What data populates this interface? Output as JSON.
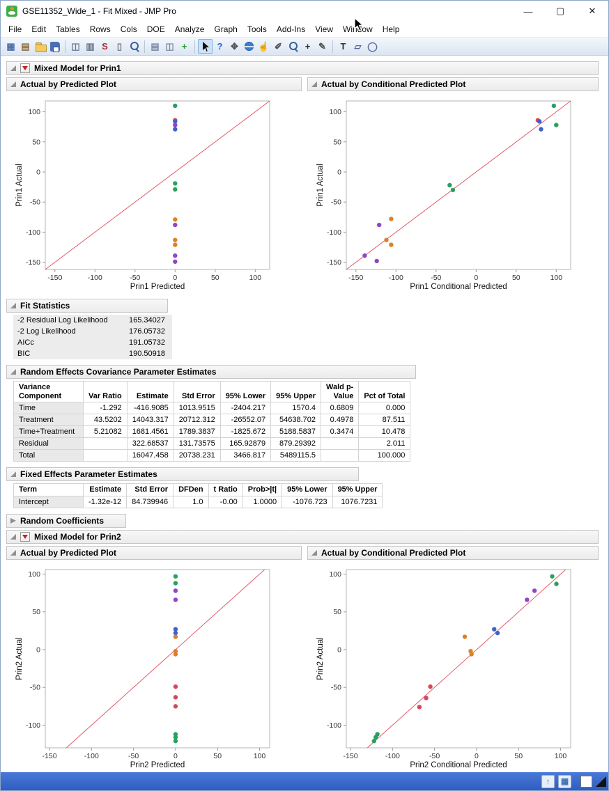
{
  "window": {
    "title": "GSE11352_Wide_1 - Fit Mixed - JMP Pro",
    "controls": {
      "minimize": "—",
      "maximize": "▢",
      "close": "✕"
    }
  },
  "menu": {
    "items": [
      "File",
      "Edit",
      "Tables",
      "Rows",
      "Cols",
      "DOE",
      "Analyze",
      "Graph",
      "Tools",
      "Add-Ins",
      "View",
      "Window",
      "Help"
    ]
  },
  "toolbar": {
    "groups": [
      [
        {
          "name": "new-data-table-icon",
          "glyph": "▦",
          "color": "#4d6fa8"
        },
        {
          "name": "new-journal-icon",
          "glyph": "▤",
          "color": "#8d6c3f"
        },
        {
          "name": "open-icon",
          "css": "i-folder"
        },
        {
          "name": "save-icon",
          "css": "i-floppy"
        }
      ],
      [
        {
          "name": "copy-icon",
          "glyph": "◫",
          "color": "#66778f"
        },
        {
          "name": "paste-icon",
          "glyph": "▥",
          "color": "#66778f"
        },
        {
          "name": "run-script-icon",
          "glyph": "S",
          "color": "#a83232"
        },
        {
          "name": "lock-icon",
          "glyph": "▯",
          "color": "#777777"
        },
        {
          "name": "search-icon",
          "css": "i-magnifier"
        }
      ],
      [
        {
          "name": "journal-icon",
          "glyph": "▤",
          "color": "#7a8aa5"
        },
        {
          "name": "layout-icon",
          "glyph": "◫",
          "color": "#7a8aa5"
        },
        {
          "name": "new-graph-icon",
          "glyph": "+",
          "color": "#2c9c3e"
        }
      ],
      [
        {
          "name": "arrow-tool-icon",
          "css": "i-arrow",
          "selected": true
        },
        {
          "name": "help-tool-icon",
          "glyph": "?",
          "color": "#2b5fd9"
        },
        {
          "name": "grabber-tool-icon",
          "glyph": "✥",
          "color": "#555555"
        },
        {
          "name": "globe-icon",
          "css": "i-globe"
        },
        {
          "name": "hand-tool-icon",
          "glyph": "☝",
          "color": "#555555"
        },
        {
          "name": "brush-tool-icon",
          "glyph": "✐",
          "color": "#555555"
        },
        {
          "name": "magnifier-tool-icon",
          "css": "i-magnifier"
        },
        {
          "name": "crosshair-tool-icon",
          "glyph": "+",
          "color": "#333333"
        },
        {
          "name": "pencil-tool-icon",
          "glyph": "✎",
          "color": "#555555"
        }
      ],
      [
        {
          "name": "annotate-text-icon",
          "glyph": "T",
          "color": "#333333"
        },
        {
          "name": "polygon-tool-icon",
          "glyph": "▱",
          "color": "#556699"
        },
        {
          "name": "oval-tool-icon",
          "glyph": "◯",
          "color": "#556699"
        }
      ]
    ]
  },
  "report": {
    "prin1_title": "Mixed Model for Prin1",
    "prin2_title": "Mixed Model for Prin2",
    "random_coefficients_title": "Random Coefficients"
  },
  "tables": {
    "fit_stats": {
      "title": "Fit Statistics",
      "rows": [
        [
          "-2 Residual Log Likelihood",
          "165.34027"
        ],
        [
          "-2 Log Likelihood",
          "176.05732"
        ],
        [
          "AICc",
          "191.05732"
        ],
        [
          "BIC",
          "190.50918"
        ]
      ]
    },
    "re_cov": {
      "title": "Random Effects Covariance Parameter Estimates",
      "headers": [
        "Variance\nComponent",
        "Var Ratio",
        "Estimate",
        "Std Error",
        "95% Lower",
        "95% Upper",
        "Wald p-\nValue",
        "Pct of Total"
      ],
      "rows": [
        [
          "Time",
          "-1.292",
          "-416.9085",
          "1013.9515",
          "-2404.217",
          "1570.4",
          "0.6809",
          "0.000"
        ],
        [
          "Treatment",
          "43.5202",
          "14043.317",
          "20712.312",
          "-26552.07",
          "54638.702",
          "0.4978",
          "87.511"
        ],
        [
          "Time+Treatment",
          "5.21082",
          "1681.4561",
          "1789.3837",
          "-1825.672",
          "5188.5837",
          "0.3474",
          "10.478"
        ],
        [
          "Residual",
          "",
          "322.68537",
          "131.73575",
          "165.92879",
          "879.29392",
          "",
          "2.011"
        ],
        [
          "Total",
          "",
          "16047.458",
          "20738.231",
          "3466.817",
          "5489115.5",
          "",
          "100.000"
        ]
      ]
    },
    "fixed_effects": {
      "title": "Fixed Effects Parameter Estimates",
      "headers": [
        "Term",
        "Estimate",
        "Std Error",
        "DFDen",
        "t Ratio",
        "Prob>|t|",
        "95% Lower",
        "95% Upper"
      ],
      "rows": [
        [
          "Intercept",
          "-1.32e-12",
          "84.739946",
          "1.0",
          "-0.00",
          "1.0000",
          "-1076.723",
          "1076.7231"
        ]
      ]
    }
  },
  "point_colors": {
    "green": "#2aa05f",
    "blue": "#4161c8",
    "purple": "#8f46c8",
    "orange": "#dd8126",
    "red": "#d8465a",
    "line": "#e25b6b"
  },
  "chart_data": [
    {
      "type": "scatter",
      "title": "Actual by Predicted Plot",
      "xlabel": "Prin1 Predicted",
      "ylabel": "Prin1 Actual",
      "xlim": [
        -162,
        118
      ],
      "ylim": [
        -162,
        118
      ],
      "xticks": [
        -150,
        -100,
        -50,
        0,
        50,
        100
      ],
      "yticks": [
        -150,
        -100,
        -50,
        0,
        50,
        100
      ],
      "identity_line": true,
      "legend": "none",
      "grid": false,
      "points": [
        [
          0,
          110,
          "green"
        ],
        [
          0,
          86,
          "red"
        ],
        [
          0,
          84,
          "blue"
        ],
        [
          0,
          78,
          "purple"
        ],
        [
          0,
          71,
          "blue"
        ],
        [
          0,
          -19,
          "green"
        ],
        [
          0,
          -29,
          "green"
        ],
        [
          0,
          -79,
          "orange"
        ],
        [
          0,
          -88,
          "purple"
        ],
        [
          0,
          -113,
          "orange"
        ],
        [
          0,
          -121,
          "orange"
        ],
        [
          0,
          -139,
          "purple"
        ],
        [
          0,
          -149,
          "purple"
        ]
      ]
    },
    {
      "type": "scatter",
      "title": "Actual by Conditional Predicted Plot",
      "xlabel": "Prin1 Conditional Predicted",
      "ylabel": "Prin1 Actual",
      "xlim": [
        -162,
        118
      ],
      "ylim": [
        -162,
        118
      ],
      "xticks": [
        -150,
        -100,
        -50,
        0,
        50,
        100
      ],
      "yticks": [
        -150,
        -100,
        -50,
        0,
        50,
        100
      ],
      "identity_line": true,
      "legend": "none",
      "grid": false,
      "points": [
        [
          97,
          110,
          "green"
        ],
        [
          100,
          78,
          "green"
        ],
        [
          77,
          86,
          "red"
        ],
        [
          79,
          84,
          "blue"
        ],
        [
          81,
          71,
          "blue"
        ],
        [
          -33,
          -22,
          "green"
        ],
        [
          -29,
          -30,
          "green"
        ],
        [
          -106,
          -78,
          "orange"
        ],
        [
          -121,
          -88,
          "purple"
        ],
        [
          -112,
          -113,
          "orange"
        ],
        [
          -106,
          -121,
          "orange"
        ],
        [
          -139,
          -139,
          "purple"
        ],
        [
          -124,
          -148,
          "purple"
        ]
      ]
    },
    {
      "type": "scatter",
      "title": "Actual by Predicted Plot",
      "xlabel": "Prin2 Predicted",
      "ylabel": "Prin2 Actual",
      "xlim": [
        -155,
        112
      ],
      "ylim": [
        -130,
        106
      ],
      "xticks": [
        -150,
        -100,
        -50,
        0,
        50,
        100
      ],
      "yticks": [
        -100,
        -50,
        0,
        50,
        100
      ],
      "identity_line": true,
      "legend": "none",
      "grid": false,
      "points": [
        [
          0,
          97,
          "green"
        ],
        [
          0,
          88,
          "green"
        ],
        [
          0,
          78,
          "purple"
        ],
        [
          0,
          66,
          "purple"
        ],
        [
          0,
          27,
          "blue"
        ],
        [
          0,
          22,
          "blue"
        ],
        [
          0,
          17,
          "orange"
        ],
        [
          0,
          -2,
          "orange"
        ],
        [
          0,
          -6,
          "orange"
        ],
        [
          0,
          -49,
          "red"
        ],
        [
          0,
          -63,
          "red"
        ],
        [
          0,
          -75,
          "red"
        ],
        [
          0,
          -112,
          "green"
        ],
        [
          0,
          -116,
          "green"
        ],
        [
          0,
          -121,
          "green"
        ]
      ]
    },
    {
      "type": "scatter",
      "title": "Actual by Conditional Predicted Plot",
      "xlabel": "Prin2 Conditional Predicted",
      "ylabel": "Prin2 Actual",
      "xlim": [
        -155,
        112
      ],
      "ylim": [
        -130,
        106
      ],
      "xticks": [
        -150,
        -100,
        -50,
        0,
        50,
        100
      ],
      "yticks": [
        -100,
        -50,
        0,
        50,
        100
      ],
      "identity_line": true,
      "legend": "none",
      "grid": false,
      "points": [
        [
          90,
          97,
          "green"
        ],
        [
          95,
          87,
          "green"
        ],
        [
          69,
          78,
          "purple"
        ],
        [
          60,
          66,
          "purple"
        ],
        [
          21,
          27,
          "blue"
        ],
        [
          25,
          22,
          "blue"
        ],
        [
          -14,
          17,
          "orange"
        ],
        [
          -7,
          -2,
          "orange"
        ],
        [
          -6,
          -6,
          "orange"
        ],
        [
          -55,
          -49,
          "red"
        ],
        [
          -60,
          -64,
          "red"
        ],
        [
          -68,
          -76,
          "red"
        ],
        [
          -118,
          -112,
          "green"
        ],
        [
          -120,
          -116,
          "green"
        ],
        [
          -122,
          -121,
          "green"
        ]
      ]
    }
  ],
  "statusbar": {
    "up_glyph": "↑",
    "grid_glyph": "▦"
  }
}
